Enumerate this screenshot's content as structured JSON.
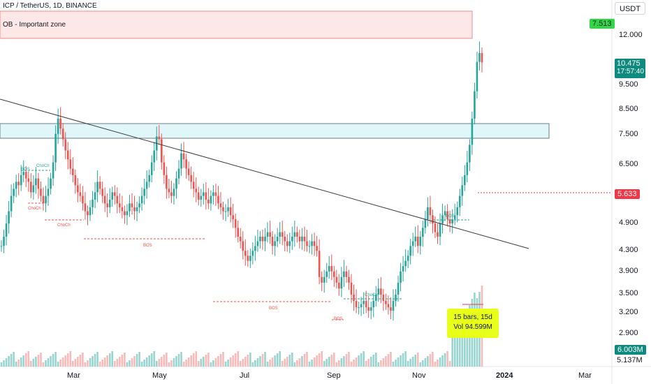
{
  "header": {
    "symbol": "ICP / TetherUS, 1D, BINANCE",
    "currency": "USDT"
  },
  "annotations": {
    "ob_zone_label": "OB - Important zone",
    "callout_line1": "15 bars, 15d",
    "callout_line2": "Vol 94.599M",
    "green_tag": "7.513",
    "small_labels": {
      "bos_left": "BOS",
      "choch_left_top": "ChoCh",
      "choch_left_mid": "ChoCh",
      "choch_left_low": "ChoCh",
      "bos_mid": "BOS",
      "bos_bottom": "BOS",
      "bos_sep": "BOS",
      "choch_sep": "ChoCh",
      "bos_nov": "BOS"
    }
  },
  "price_tags": {
    "current_price": "10.475",
    "countdown": "17:57:40",
    "red_tag": "5.633",
    "volume_tag": "6.003M",
    "volume_scale": "5.137M"
  },
  "colors": {
    "up": "#26a69a",
    "down": "#ef5350",
    "ob_fill": "#fde7e7",
    "ob_border": "#f28b8b",
    "zone_fill": "#e0f6f8",
    "zone_border": "#6b7c85",
    "trendline": "#3a3a3a",
    "tag_teal": "#0e8a7e",
    "tag_red": "#f23645",
    "tag_green": "#2ed845",
    "callout": "#e8ff1a"
  },
  "chart_data": {
    "type": "candlestick",
    "y_axis": {
      "scale": "log",
      "tick_labels": [
        "12.000",
        "10.475",
        "9.500",
        "8.500",
        "7.500",
        "6.500",
        "5.633",
        "4.900",
        "4.300",
        "3.900",
        "3.500",
        "3.200",
        "2.900"
      ],
      "ylim": [
        2.6,
        13.5
      ]
    },
    "x_axis": {
      "tick_labels": [
        "Mar",
        "May",
        "Jul",
        "Sep",
        "Nov",
        "2024",
        "Mar"
      ]
    },
    "ohlc_close": [
      4.0,
      4.2,
      4.5,
      4.8,
      5.2,
      5.4,
      5.6,
      5.5,
      5.8,
      5.9,
      5.7,
      5.6,
      5.3,
      5.5,
      5.7,
      5.4,
      5.2,
      5.0,
      5.2,
      5.4,
      5.7,
      6.2,
      7.2,
      7.8,
      7.4,
      7.0,
      6.6,
      6.3,
      6.0,
      5.8,
      5.5,
      5.3,
      5.2,
      5.0,
      4.8,
      4.7,
      4.9,
      5.1,
      5.3,
      5.6,
      5.4,
      5.2,
      5.0,
      4.9,
      5.1,
      5.3,
      5.2,
      5.0,
      4.9,
      4.8,
      4.7,
      4.8,
      5.0,
      4.9,
      4.8,
      4.9,
      5.0,
      5.2,
      5.4,
      5.6,
      5.8,
      6.2,
      6.6,
      7.1,
      7.0,
      6.2,
      5.8,
      5.4,
      5.3,
      5.2,
      5.4,
      5.7,
      6.0,
      6.5,
      6.3,
      6.0,
      5.8,
      5.6,
      5.4,
      5.3,
      5.1,
      5.2,
      5.3,
      5.1,
      5.0,
      5.2,
      5.3,
      5.2,
      5.0,
      4.9,
      4.8,
      4.8,
      4.9,
      4.7,
      4.6,
      4.4,
      4.2,
      4.1,
      3.9,
      3.8,
      3.7,
      3.8,
      3.9,
      4.0,
      4.1,
      4.2,
      4.1,
      4.2,
      4.3,
      4.2,
      4.0,
      4.1,
      4.2,
      4.3,
      4.2,
      4.1,
      4.0,
      4.1,
      4.2,
      4.3,
      4.2,
      4.1,
      4.2,
      4.1,
      4.0,
      4.0,
      4.1,
      4.0,
      3.9,
      3.4,
      3.3,
      3.4,
      3.5,
      3.6,
      3.5,
      3.4,
      3.3,
      3.2,
      3.4,
      3.5,
      3.4,
      3.3,
      3.1,
      3.0,
      2.9,
      2.9,
      2.95,
      3.0,
      2.9,
      2.85,
      2.9,
      3.0,
      3.1,
      3.2,
      3.1,
      3.0,
      2.95,
      2.9,
      2.85,
      3.0,
      3.1,
      3.3,
      3.5,
      3.6,
      3.7,
      3.8,
      4.0,
      4.1,
      4.2,
      4.0,
      4.2,
      4.4,
      4.6,
      4.9,
      4.7,
      4.5,
      4.3,
      4.2,
      4.5,
      4.7,
      4.8,
      4.6,
      4.5,
      4.6,
      4.7,
      4.9,
      5.2,
      5.5,
      5.8,
      6.2,
      6.8,
      7.8,
      9.0,
      10.5,
      11.0,
      10.475
    ],
    "levels": {
      "ob_zone": [
        12.1,
        13.4
      ],
      "blue_zone": [
        7.3,
        7.9
      ],
      "red_dotted": 5.633
    }
  }
}
